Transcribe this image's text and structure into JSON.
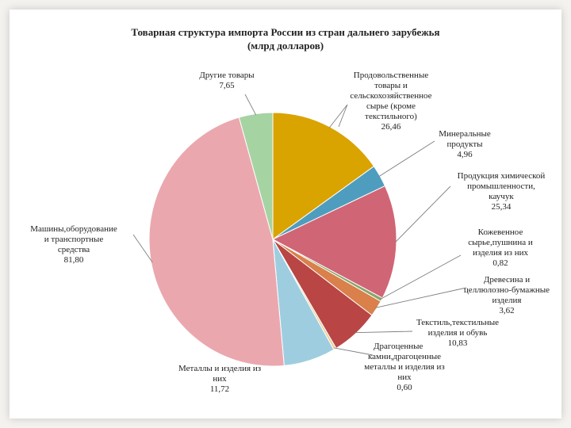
{
  "chart_data": {
    "type": "pie",
    "title_line1": "Товарная структура  импорта России из стран дальнего зарубежья",
    "title_line2": "(млрд долларов)",
    "slices": [
      {
        "name": "Продовольственные товары и сельскохозяйственное сырье (кроме текстильного)",
        "label_lines": [
          "Продовольственные",
          "товары и",
          "сельскохозяйственное",
          "сырье (кроме",
          "текстильного)"
        ],
        "value_text": "26,46",
        "value": 26.46,
        "color": "#d9a300"
      },
      {
        "name": "Минеральные продукты",
        "label_lines": [
          "Минеральные",
          "продукты"
        ],
        "value_text": "4,96",
        "value": 4.96,
        "color": "#4f9dbe"
      },
      {
        "name": "Продукция химической промышленности, каучук",
        "label_lines": [
          "Продукция химической",
          "промышленности,",
          "каучук"
        ],
        "value_text": "25,34",
        "value": 25.34,
        "color": "#d06575"
      },
      {
        "name": "Кожевенное сырье,пушнина и изделия из них",
        "label_lines": [
          "Кожевенное",
          "сырье,пушнина и",
          "изделия из них"
        ],
        "value_text": "0,82",
        "value": 0.82,
        "color": "#8aa66b"
      },
      {
        "name": "Древесина и целлюлозно-бумажные изделия",
        "label_lines": [
          "Древесина и",
          "целлюлозно-бумажные",
          "изделия"
        ],
        "value_text": "3,62",
        "value": 3.62,
        "color": "#d9804b"
      },
      {
        "name": "Текстиль,текстильные изделия и обувь",
        "label_lines": [
          "Текстиль,текстильные",
          "изделия и обувь"
        ],
        "value_text": "10,83",
        "value": 10.83,
        "color": "#b94545"
      },
      {
        "name": "Драгоценные камни,драгоценные металлы и изделия из них",
        "label_lines": [
          "Драгоценные",
          "камни,драгоценные",
          "металлы и изделия из",
          "них"
        ],
        "value_text": "0,60",
        "value": 0.6,
        "color": "#edd09a"
      },
      {
        "name": "Металлы и изделия из них",
        "label_lines": [
          "Металлы и изделия из",
          "них"
        ],
        "value_text": "11,72",
        "value": 11.72,
        "color": "#9fcde0"
      },
      {
        "name": "Машины,оборудование и транспортные средства",
        "label_lines": [
          "Машины,оборудование",
          "и транспортные",
          "средства"
        ],
        "value_text": "81,80",
        "value": 81.8,
        "color": "#eaa8ae"
      },
      {
        "name": "Другие товары",
        "label_lines": [
          "Другие товары"
        ],
        "value_text": "7,65",
        "value": 7.65,
        "color": "#a6d3a2"
      }
    ]
  }
}
